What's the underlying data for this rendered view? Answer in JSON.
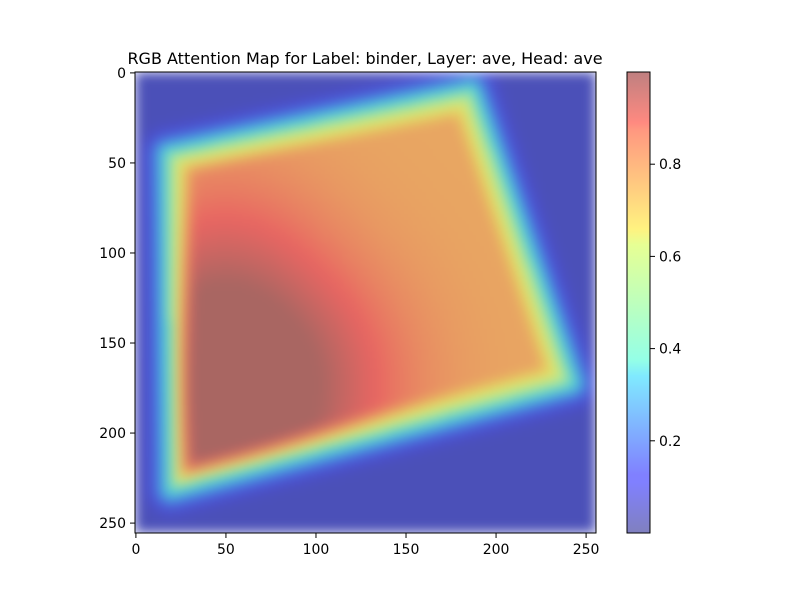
{
  "chart_data": {
    "type": "heatmap",
    "title": "RGB Attention Map for Label: binder, Layer: ave, Head: ave",
    "image_size": [
      256,
      256
    ],
    "xlim": [
      0,
      255
    ],
    "ylim": [
      255,
      0
    ],
    "xticks": [
      0,
      50,
      100,
      150,
      200,
      250
    ],
    "yticks": [
      0,
      50,
      100,
      150,
      200,
      250
    ],
    "colormap": "jet",
    "overlay_alpha": 0.5,
    "colorbar": {
      "range": [
        0.0,
        1.0
      ],
      "ticks": [
        0.2,
        0.4,
        0.6,
        0.8
      ]
    },
    "object_quad": [
      [
        18,
        45
      ],
      [
        187,
        10
      ],
      [
        243,
        173
      ],
      [
        20,
        232
      ]
    ],
    "attention_peak": {
      "x": 42,
      "y": 200,
      "value": 1.0
    },
    "attention_ridge": [
      {
        "x": 40,
        "y": 150,
        "value": 0.96
      },
      {
        "x": 50,
        "y": 100,
        "value": 0.9
      },
      {
        "x": 100,
        "y": 160,
        "value": 0.9
      }
    ],
    "background_value": 0.05,
    "object_base_value": 0.75
  }
}
